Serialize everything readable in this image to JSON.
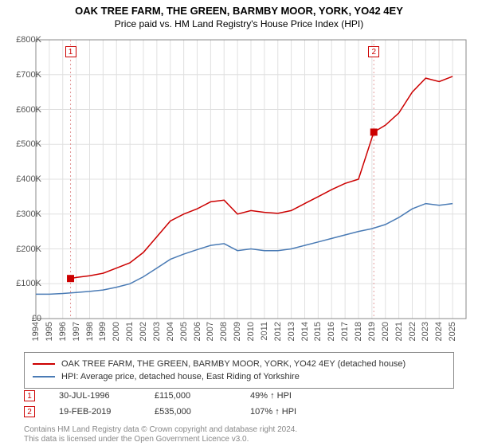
{
  "title": "OAK TREE FARM, THE GREEN, BARMBY MOOR, YORK, YO42 4EY",
  "subtitle": "Price paid vs. HM Land Registry's House Price Index (HPI)",
  "chart": {
    "type": "line",
    "background_color": "#ffffff",
    "grid_color": "#e0e0e0",
    "border_color": "#888888",
    "x": {
      "min": 1994,
      "max": 2026,
      "ticks": [
        1994,
        1995,
        1996,
        1997,
        1998,
        1999,
        2000,
        2001,
        2002,
        2003,
        2004,
        2005,
        2006,
        2007,
        2008,
        2009,
        2010,
        2011,
        2012,
        2013,
        2014,
        2015,
        2016,
        2017,
        2018,
        2019,
        2020,
        2021,
        2022,
        2023,
        2024,
        2025
      ],
      "tick_rotation_deg": 90,
      "tick_fontsize": 11
    },
    "y": {
      "min": 0,
      "max": 800000,
      "ticks": [
        0,
        100000,
        200000,
        300000,
        400000,
        500000,
        600000,
        700000,
        800000
      ],
      "tick_labels": [
        "£0",
        "£100K",
        "£200K",
        "£300K",
        "£400K",
        "£500K",
        "£600K",
        "£700K",
        "£800K"
      ],
      "tick_fontsize": 11
    },
    "series": [
      {
        "name": "OAK TREE FARM, THE GREEN, BARMBY MOOR, YORK, YO42 4EY (detached house)",
        "color": "#cc0000",
        "line_width": 1.5,
        "points": [
          [
            1996.58,
            115000
          ],
          [
            1997,
            118000
          ],
          [
            1998,
            123000
          ],
          [
            1999,
            130000
          ],
          [
            2000,
            145000
          ],
          [
            2001,
            160000
          ],
          [
            2002,
            190000
          ],
          [
            2003,
            235000
          ],
          [
            2004,
            280000
          ],
          [
            2005,
            300000
          ],
          [
            2006,
            315000
          ],
          [
            2007,
            335000
          ],
          [
            2008,
            340000
          ],
          [
            2009,
            300000
          ],
          [
            2010,
            310000
          ],
          [
            2011,
            305000
          ],
          [
            2012,
            302000
          ],
          [
            2013,
            310000
          ],
          [
            2014,
            330000
          ],
          [
            2015,
            350000
          ],
          [
            2016,
            370000
          ],
          [
            2017,
            388000
          ],
          [
            2018,
            400000
          ],
          [
            2019.14,
            535000
          ],
          [
            2020,
            555000
          ],
          [
            2021,
            590000
          ],
          [
            2022,
            650000
          ],
          [
            2023,
            690000
          ],
          [
            2024,
            680000
          ],
          [
            2025,
            695000
          ]
        ]
      },
      {
        "name": "HPI: Average price, detached house, East Riding of Yorkshire",
        "color": "#4a7bb5",
        "line_width": 1.5,
        "points": [
          [
            1994,
            70000
          ],
          [
            1995,
            70000
          ],
          [
            1996,
            72000
          ],
          [
            1997,
            75000
          ],
          [
            1998,
            78000
          ],
          [
            1999,
            82000
          ],
          [
            2000,
            90000
          ],
          [
            2001,
            100000
          ],
          [
            2002,
            120000
          ],
          [
            2003,
            145000
          ],
          [
            2004,
            170000
          ],
          [
            2005,
            185000
          ],
          [
            2006,
            198000
          ],
          [
            2007,
            210000
          ],
          [
            2008,
            215000
          ],
          [
            2009,
            195000
          ],
          [
            2010,
            200000
          ],
          [
            2011,
            195000
          ],
          [
            2012,
            195000
          ],
          [
            2013,
            200000
          ],
          [
            2014,
            210000
          ],
          [
            2015,
            220000
          ],
          [
            2016,
            230000
          ],
          [
            2017,
            240000
          ],
          [
            2018,
            250000
          ],
          [
            2019,
            258000
          ],
          [
            2020,
            270000
          ],
          [
            2021,
            290000
          ],
          [
            2022,
            315000
          ],
          [
            2023,
            330000
          ],
          [
            2024,
            325000
          ],
          [
            2025,
            330000
          ]
        ]
      }
    ],
    "markers": [
      {
        "n": "1",
        "x": 1996.58,
        "y": 115000
      },
      {
        "n": "2",
        "x": 2019.14,
        "y": 535000
      }
    ]
  },
  "legend": {
    "items": [
      {
        "color": "#cc0000",
        "label": "OAK TREE FARM, THE GREEN, BARMBY MOOR, YORK, YO42 4EY (detached house)"
      },
      {
        "color": "#4a7bb5",
        "label": "HPI: Average price, detached house, East Riding of Yorkshire"
      }
    ]
  },
  "transactions": [
    {
      "n": "1",
      "date": "30-JUL-1996",
      "price": "£115,000",
      "vs_hpi": "49% ↑ HPI"
    },
    {
      "n": "2",
      "date": "19-FEB-2019",
      "price": "£535,000",
      "vs_hpi": "107% ↑ HPI"
    }
  ],
  "license_line1": "Contains HM Land Registry data © Crown copyright and database right 2024.",
  "license_line2": "This data is licensed under the Open Government Licence v3.0."
}
